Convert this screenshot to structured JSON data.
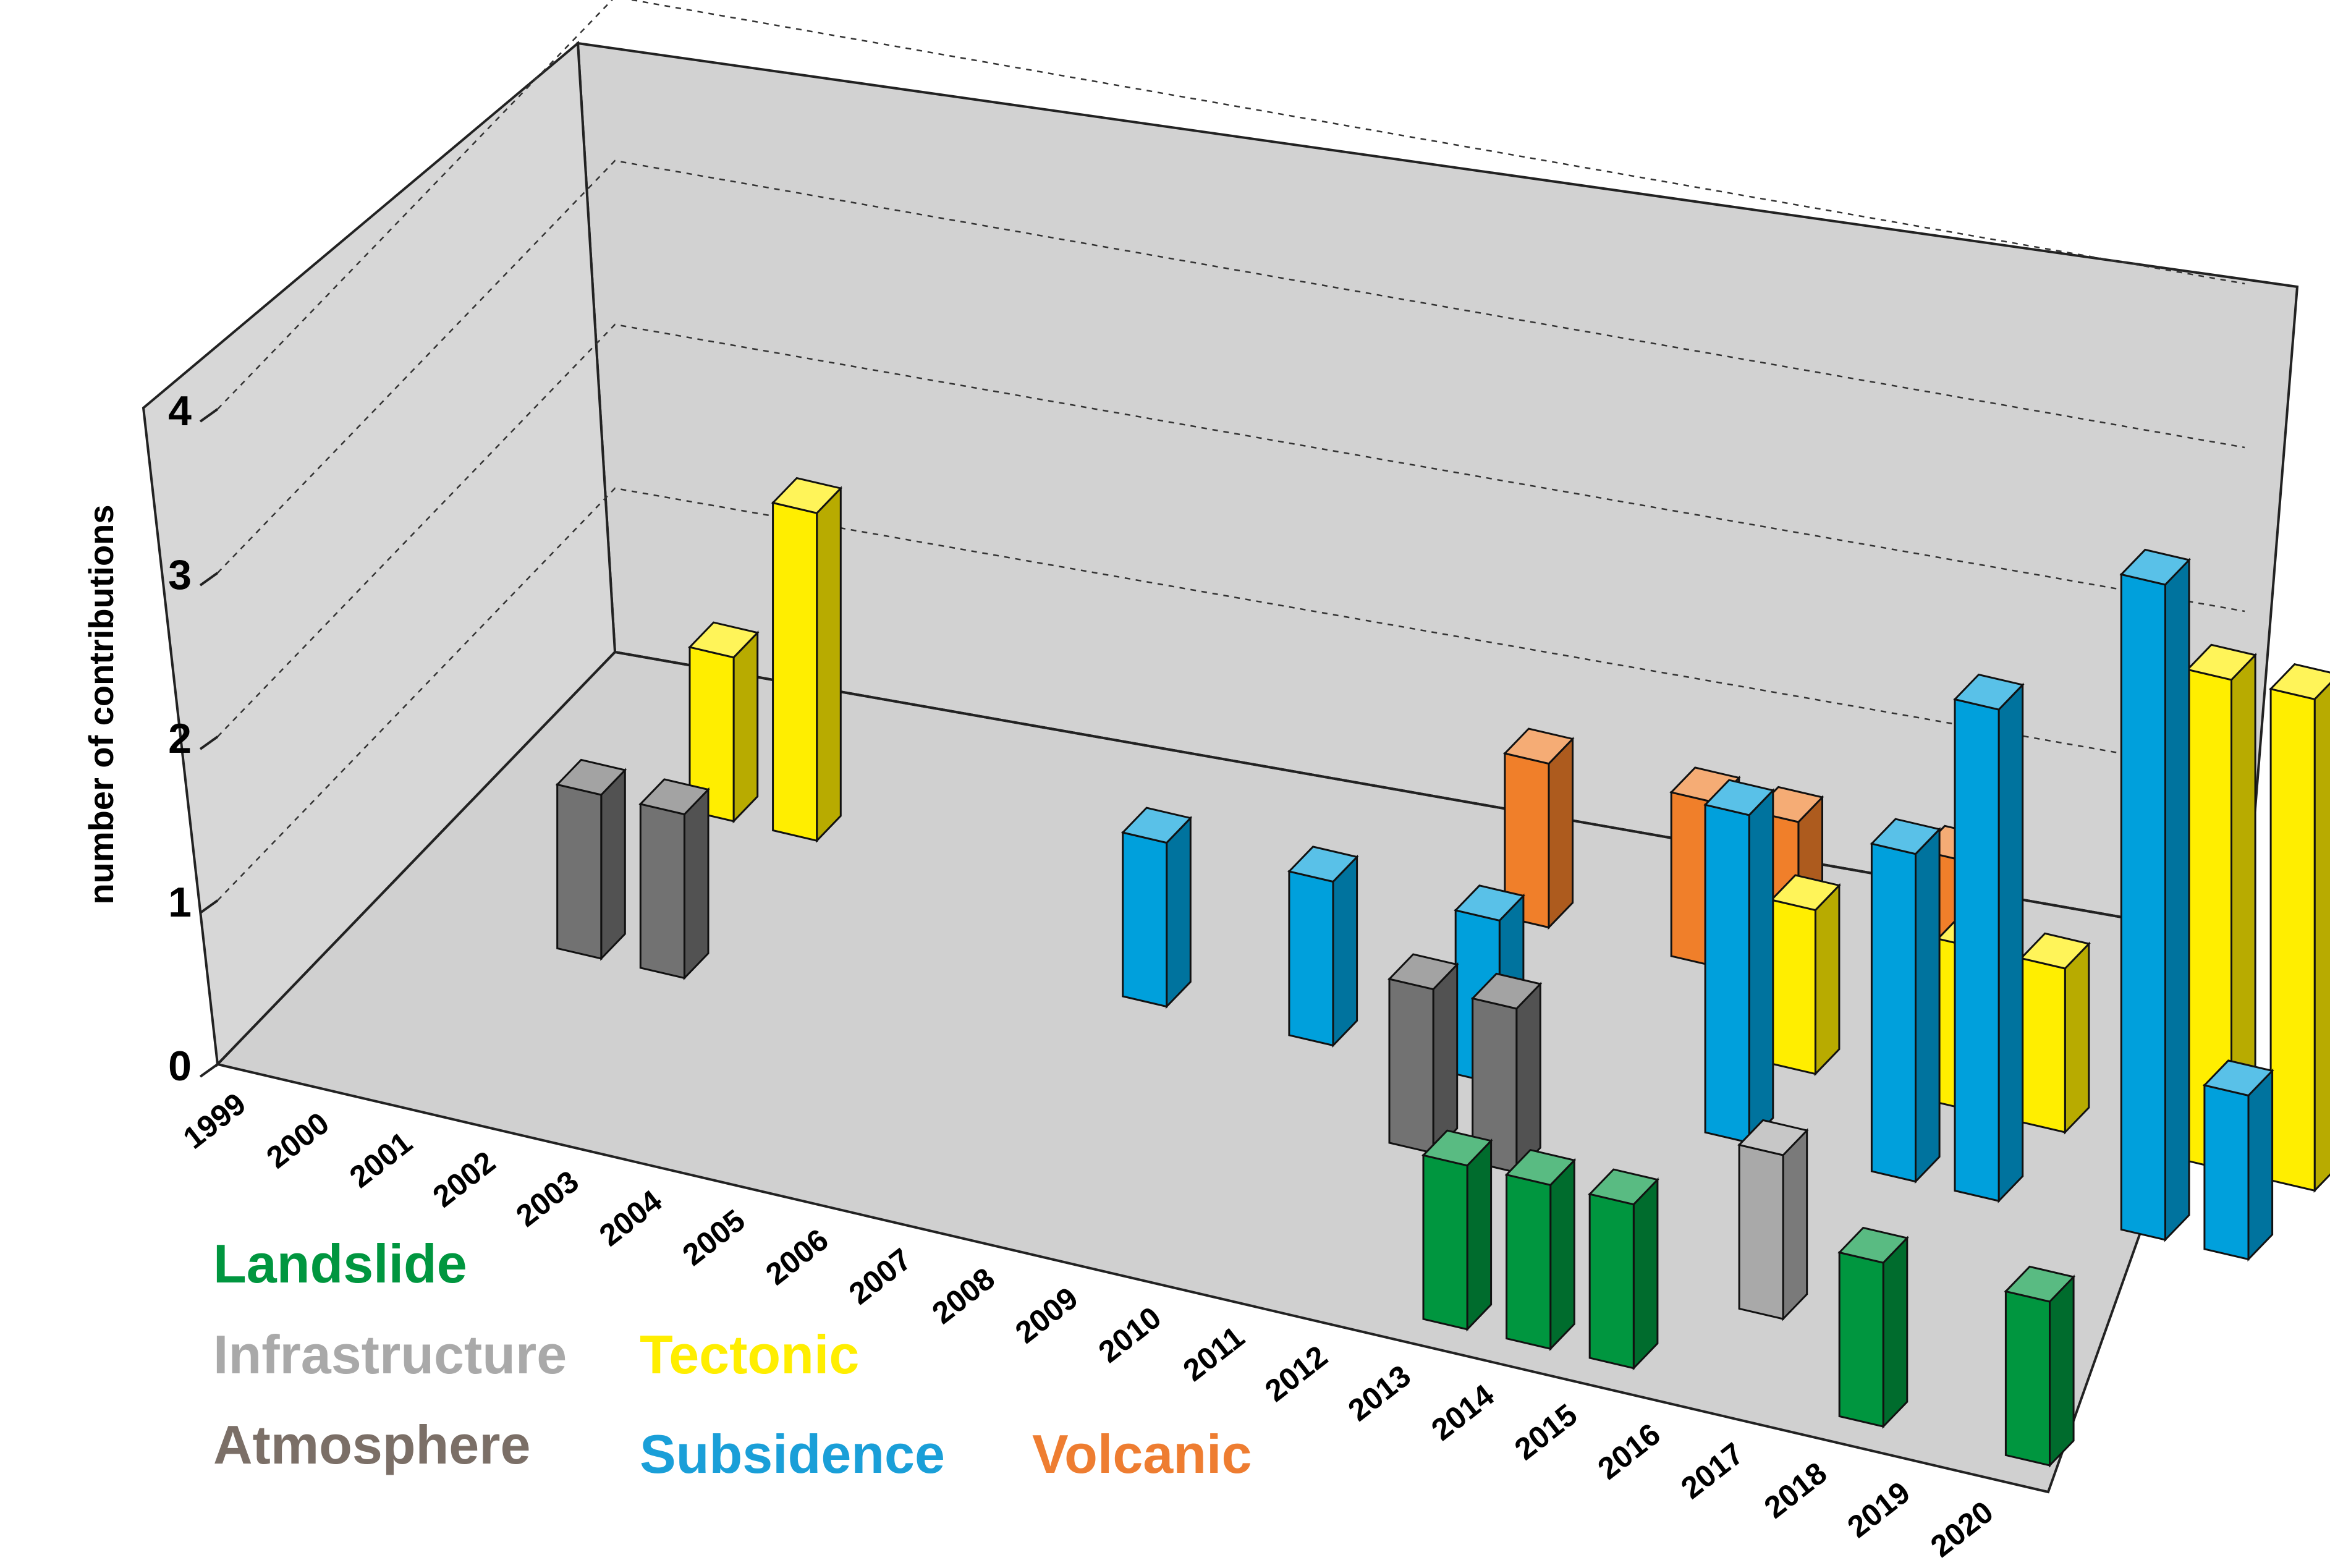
{
  "chart_data": {
    "type": "bar",
    "title": "",
    "xlabel": "",
    "ylabel": "number of contributions",
    "ylim": [
      0,
      4
    ],
    "yticks": [
      "0",
      "1",
      "2",
      "3",
      "4"
    ],
    "grid": true,
    "categories": [
      "1999",
      "2000",
      "2001",
      "2002",
      "2003",
      "2004",
      "2005",
      "2006",
      "2007",
      "2008",
      "2009",
      "2010",
      "2011",
      "2012",
      "2013",
      "2014",
      "2015",
      "2016",
      "2017",
      "2018",
      "2019",
      "2020"
    ],
    "series": [
      {
        "name": "Landslide",
        "color": "#00963f",
        "values": [
          0,
          0,
          0,
          0,
          0,
          0,
          0,
          0,
          0,
          0,
          0,
          0,
          0,
          0,
          1,
          1,
          1,
          0,
          0,
          1,
          0,
          1
        ]
      },
      {
        "name": "Infrastructure",
        "color": "#a9a9a9",
        "values": [
          0,
          0,
          0,
          0,
          0,
          0,
          0,
          0,
          0,
          0,
          0,
          0,
          0,
          0,
          0,
          0,
          0,
          1,
          0,
          0,
          0,
          0
        ]
      },
      {
        "name": "Atmosphere",
        "color": "#727272",
        "values": [
          0,
          0,
          1,
          1,
          0,
          0,
          0,
          0,
          0,
          0,
          0,
          0,
          1,
          1,
          0,
          0,
          0,
          0,
          0,
          0,
          0,
          0
        ]
      },
      {
        "name": "Subsidence",
        "color": "#00a0dc",
        "values": [
          0,
          0,
          0,
          0,
          0,
          0,
          0,
          0,
          1,
          0,
          1,
          0,
          1,
          0,
          0,
          2,
          0,
          2,
          3,
          0,
          4,
          1
        ]
      },
      {
        "name": "Tectonic",
        "color": "#ffee00",
        "values": [
          0,
          0,
          1,
          2,
          0,
          0,
          0,
          0,
          0,
          0,
          0,
          0,
          0,
          0,
          0,
          1,
          0,
          1,
          1,
          0,
          3,
          3
        ]
      },
      {
        "name": "Volcanic",
        "color": "#f07f2a",
        "values": [
          0,
          0,
          0,
          0,
          0,
          0,
          0,
          0,
          0,
          0,
          0,
          1,
          0,
          1,
          1,
          0,
          1,
          0,
          0,
          1,
          0,
          0
        ]
      }
    ],
    "legend": {
      "position": "bottom-left",
      "entries": [
        {
          "label": "Landslide",
          "color": "#00963f"
        },
        {
          "label": "Infrastructure",
          "color": "#a9a9a9"
        },
        {
          "label": "Tectonic",
          "color": "#ffee00"
        },
        {
          "label": "Atmosphere",
          "color": "#7b6f67"
        },
        {
          "label": "Subsidence",
          "color": "#1a9fd8"
        },
        {
          "label": "Volcanic",
          "color": "#ee7d31"
        }
      ]
    }
  }
}
